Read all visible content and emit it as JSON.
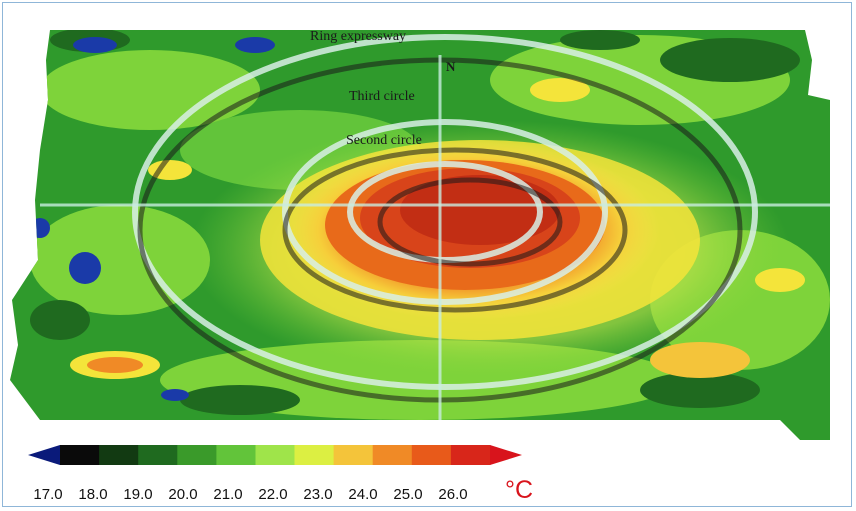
{
  "map": {
    "labels": {
      "ring_expressway": "Ring expressway",
      "north": "N",
      "third_circle": "Third circle",
      "second_circle": "Second circle"
    },
    "colors": {
      "background_green": "#2f9a2c",
      "light_green": "#7ed33a",
      "yellow": "#f4e43a",
      "orange": "#f09a26",
      "dark_orange": "#e86a1a",
      "red": "#c62a16",
      "ring_line": "#d8efe6"
    }
  },
  "legend": {
    "unit": "°C",
    "ticks": [
      "17.0",
      "18.0",
      "19.0",
      "20.0",
      "21.0",
      "22.0",
      "23.0",
      "24.0",
      "25.0",
      "26.0"
    ],
    "colors": [
      "#0a0a0a",
      "#123a12",
      "#1f6a1f",
      "#3a9a2a",
      "#62c43a",
      "#9fe44a",
      "#dcef42",
      "#f4c43a",
      "#f08a26",
      "#e85a1a",
      "#d8261a"
    ],
    "left_arrow_color": "#0a1a7a",
    "right_arrow_color": "#d8141c"
  }
}
